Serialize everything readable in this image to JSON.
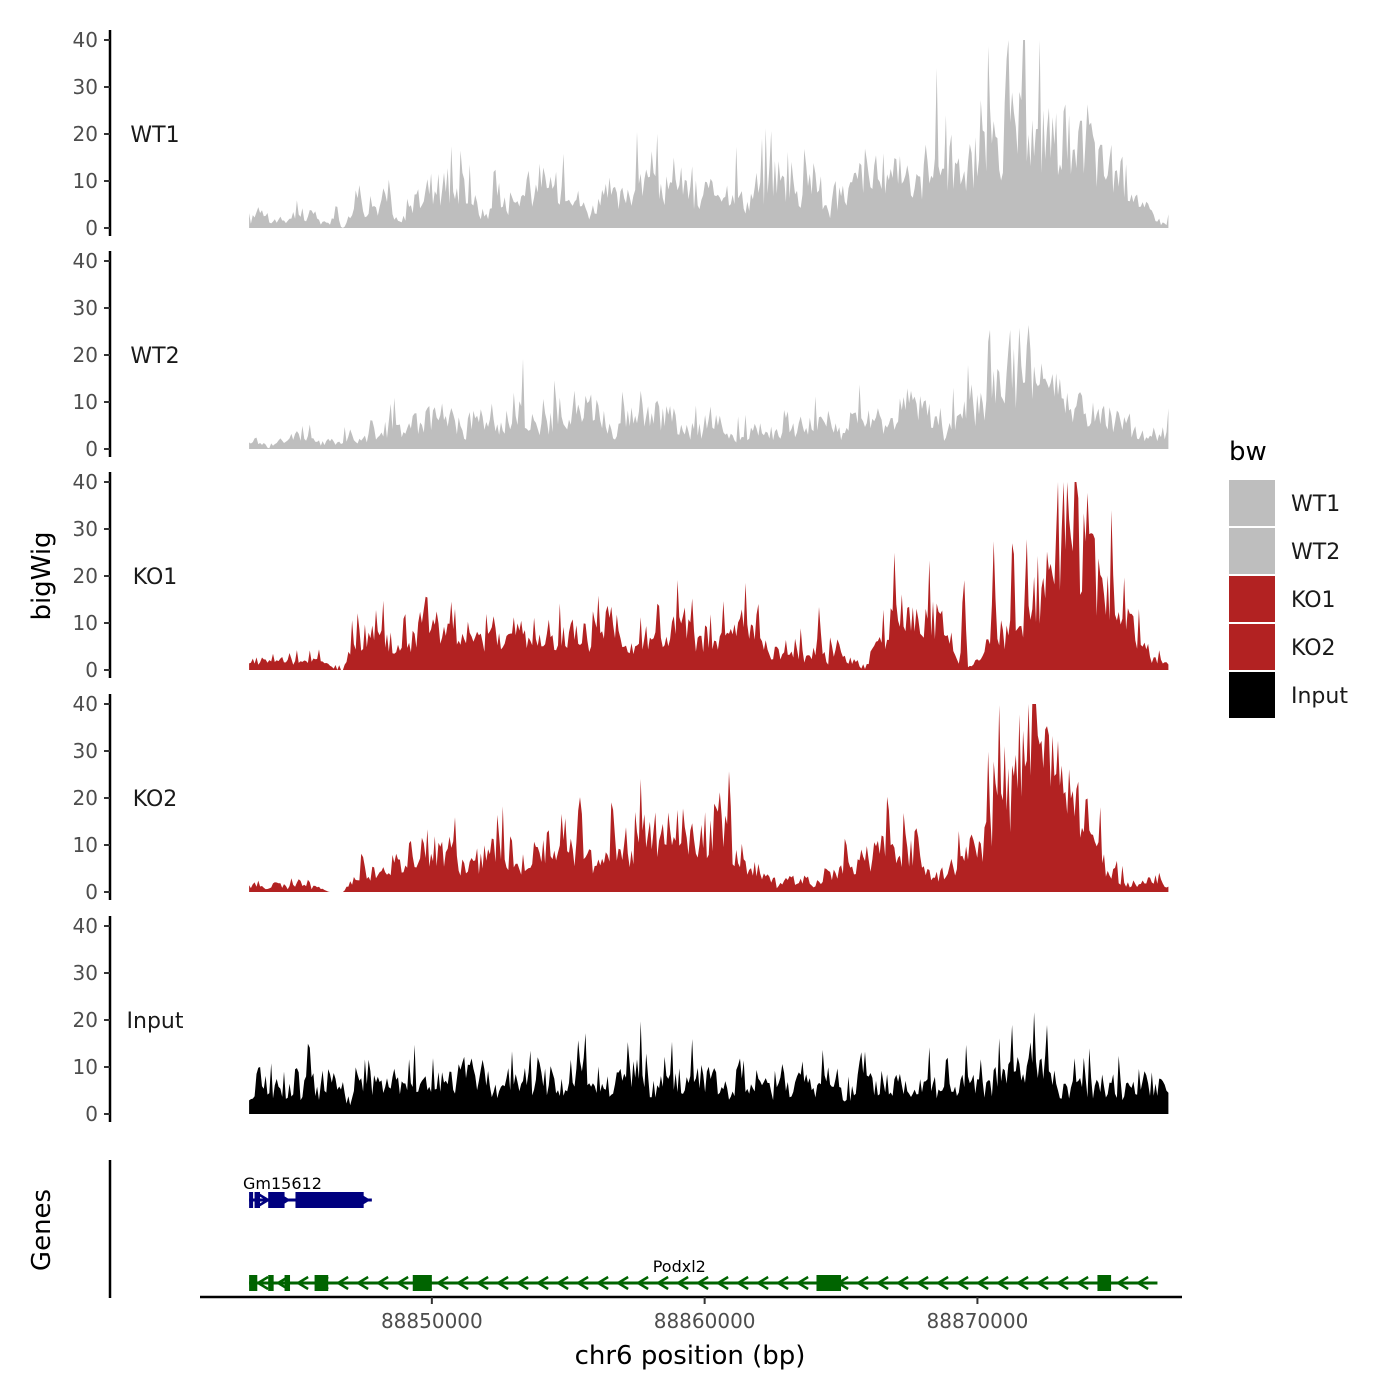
{
  "chart_data": {
    "type": "area",
    "title": "",
    "xlabel": "chr6 position (bp)",
    "ylabel": "bigWig",
    "genes_label": "Genes",
    "xlim": [
      88841500,
      88877500
    ],
    "x_ticks": [
      88850000,
      88860000,
      88870000
    ],
    "x_tick_labels": [
      "88850000",
      "88860000",
      "88870000"
    ],
    "ylim": [
      0,
      40
    ],
    "y_ticks": [
      0,
      10,
      20,
      30,
      40
    ],
    "y_tick_labels": [
      "0",
      "10",
      "20",
      "30",
      "40"
    ],
    "x_start": 88843300,
    "x_end": 88877000,
    "legend": {
      "title": "bw",
      "position": "right",
      "items": [
        {
          "label": "WT1",
          "color": "#bebebe"
        },
        {
          "label": "WT2",
          "color": "#bebebe"
        },
        {
          "label": "KO1",
          "color": "#b22222"
        },
        {
          "label": "KO2",
          "color": "#b22222"
        },
        {
          "label": "Input",
          "color": "#000000"
        }
      ]
    },
    "series": [
      {
        "name": "WT1",
        "color": "#bebebe",
        "values": [
          1,
          3,
          4,
          1,
          2,
          1,
          3,
          2,
          2,
          3,
          1,
          1,
          1,
          0,
          2,
          7,
          4,
          5,
          4,
          6,
          2,
          1,
          4,
          5,
          7,
          9,
          8,
          9,
          8,
          7,
          9,
          6,
          3,
          3,
          4,
          5,
          5,
          6,
          7,
          8,
          6,
          8,
          8,
          9,
          10,
          7,
          5,
          3,
          5,
          6,
          8,
          5,
          8,
          8,
          9,
          10,
          8,
          9,
          7,
          8,
          10,
          6,
          4,
          8,
          7,
          9,
          8,
          9,
          6,
          5,
          9,
          8,
          11,
          12,
          9,
          8,
          6,
          11,
          10,
          7,
          3,
          5,
          7,
          8,
          10,
          13,
          9,
          7,
          8,
          11,
          14,
          9,
          6,
          11,
          16,
          15,
          13,
          14,
          11,
          9,
          13,
          16,
          17,
          16,
          18,
          20,
          22,
          19,
          20,
          17,
          23,
          16,
          21,
          19,
          12,
          17,
          21,
          14,
          13,
          11,
          12,
          10,
          9,
          4,
          4,
          3,
          1,
          1
        ],
        "peaks": [
          {
            "x": 88846500,
            "y": 6
          },
          {
            "x": 88852300,
            "y": 16
          },
          {
            "x": 88858900,
            "y": 14
          },
          {
            "x": 88863200,
            "y": 16
          },
          {
            "x": 88866800,
            "y": 15
          },
          {
            "x": 88868600,
            "y": 16
          },
          {
            "x": 88869700,
            "y": 21
          },
          {
            "x": 88870400,
            "y": 22
          },
          {
            "x": 88871200,
            "y": 23
          },
          {
            "x": 88872600,
            "y": 22
          }
        ]
      },
      {
        "name": "WT2",
        "color": "#bebebe",
        "values": [
          1,
          2,
          1,
          0,
          2,
          1,
          3,
          3,
          2,
          2,
          1,
          2,
          1,
          2,
          3,
          2,
          2,
          3,
          4,
          4,
          5,
          4,
          5,
          5,
          6,
          7,
          6,
          8,
          7,
          5,
          3,
          5,
          6,
          6,
          4,
          5,
          7,
          7,
          8,
          6,
          5,
          5,
          6,
          9,
          6,
          7,
          8,
          9,
          8,
          6,
          4,
          3,
          6,
          7,
          8,
          9,
          7,
          6,
          8,
          5,
          4,
          3,
          4,
          3,
          4,
          4,
          3,
          2,
          3,
          3,
          4,
          4,
          4,
          2,
          4,
          4,
          5,
          4,
          6,
          5,
          5,
          4,
          3,
          5,
          6,
          8,
          5,
          6,
          4,
          6,
          8,
          10,
          9,
          8,
          7,
          5,
          3,
          5,
          7,
          9,
          8,
          9,
          10,
          12,
          13,
          17,
          15,
          25,
          16,
          15,
          13,
          12,
          14,
          11,
          10,
          8,
          7,
          7,
          7,
          6,
          6,
          5,
          4,
          3,
          2,
          2,
          3,
          4
        ],
        "peaks": [
          {
            "x": 88849400,
            "y": 10
          },
          {
            "x": 88854100,
            "y": 12
          },
          {
            "x": 88857000,
            "y": 14
          },
          {
            "x": 88869800,
            "y": 15
          },
          {
            "x": 88870600,
            "y": 17
          },
          {
            "x": 88871200,
            "y": 26
          },
          {
            "x": 88872600,
            "y": 15
          },
          {
            "x": 88873800,
            "y": 9
          }
        ]
      },
      {
        "name": "KO1",
        "color": "#b22222",
        "values": [
          1,
          2,
          2,
          3,
          2,
          2,
          1,
          2,
          2,
          2,
          3,
          1,
          0,
          0,
          4,
          6,
          7,
          8,
          6,
          7,
          5,
          4,
          5,
          8,
          10,
          12,
          9,
          8,
          7,
          6,
          8,
          6,
          6,
          8,
          7,
          8,
          6,
          7,
          8,
          5,
          5,
          6,
          7,
          8,
          6,
          5,
          4,
          5,
          8,
          10,
          11,
          9,
          6,
          5,
          6,
          8,
          7,
          6,
          7,
          9,
          10,
          7,
          6,
          7,
          5,
          6,
          7,
          8,
          10,
          9,
          6,
          5,
          4,
          4,
          3,
          3,
          4,
          2,
          3,
          4,
          2,
          6,
          3,
          2,
          1,
          0,
          3,
          6,
          8,
          10,
          13,
          11,
          10,
          12,
          11,
          10,
          7,
          4,
          2,
          1,
          1,
          3,
          5,
          6,
          5,
          6,
          6,
          9,
          11,
          17,
          20,
          23,
          28,
          31,
          33,
          27,
          24,
          20,
          18,
          15,
          13,
          10,
          9,
          6,
          4,
          2,
          2,
          1
        ],
        "peaks": [
          {
            "x": 88847300,
            "y": 12
          },
          {
            "x": 88849000,
            "y": 15
          },
          {
            "x": 88855600,
            "y": 13
          },
          {
            "x": 88861900,
            "y": 12
          },
          {
            "x": 88864200,
            "y": 14
          },
          {
            "x": 88869500,
            "y": 22
          },
          {
            "x": 88870600,
            "y": 28
          },
          {
            "x": 88871300,
            "y": 34
          },
          {
            "x": 88871800,
            "y": 30
          },
          {
            "x": 88872700,
            "y": 25
          }
        ]
      },
      {
        "name": "KO2",
        "color": "#b22222",
        "values": [
          1,
          2,
          1,
          1,
          2,
          1,
          1,
          2,
          1,
          1,
          1,
          0,
          0,
          0,
          2,
          3,
          4,
          4,
          5,
          5,
          6,
          5,
          6,
          8,
          10,
          9,
          8,
          9,
          8,
          6,
          5,
          6,
          7,
          8,
          9,
          8,
          6,
          5,
          6,
          7,
          8,
          9,
          11,
          12,
          10,
          9,
          8,
          7,
          6,
          7,
          8,
          9,
          8,
          10,
          12,
          13,
          11,
          10,
          12,
          11,
          13,
          10,
          11,
          12,
          14,
          15,
          13,
          9,
          7,
          6,
          5,
          4,
          3,
          1,
          2,
          3,
          2,
          3,
          1,
          3,
          4,
          4,
          5,
          5,
          6,
          7,
          7,
          8,
          9,
          7,
          8,
          9,
          10,
          8,
          4,
          3,
          4,
          5,
          6,
          7,
          9,
          10,
          12,
          15,
          18,
          22,
          28,
          35,
          36,
          30,
          27,
          25,
          22,
          20,
          22,
          19,
          16,
          10,
          6,
          4,
          3,
          2,
          1,
          2,
          2,
          3,
          2,
          1
        ],
        "peaks": [
          {
            "x": 88849200,
            "y": 14
          },
          {
            "x": 88852900,
            "y": 15
          },
          {
            "x": 88857500,
            "y": 15
          },
          {
            "x": 88859000,
            "y": 18
          },
          {
            "x": 88870400,
            "y": 31
          },
          {
            "x": 88870800,
            "y": 40
          },
          {
            "x": 88871300,
            "y": 34
          },
          {
            "x": 88872500,
            "y": 32
          }
        ]
      },
      {
        "name": "Input",
        "color": "#000000",
        "values": [
          2,
          7,
          8,
          5,
          6,
          4,
          5,
          4,
          7,
          6,
          5,
          8,
          6,
          4,
          3,
          6,
          9,
          7,
          5,
          6,
          7,
          5,
          6,
          7,
          5,
          4,
          6,
          7,
          8,
          7,
          9,
          8,
          9,
          7,
          6,
          5,
          6,
          7,
          8,
          6,
          9,
          7,
          8,
          6,
          5,
          7,
          9,
          7,
          6,
          5,
          6,
          8,
          7,
          8,
          9,
          6,
          5,
          7,
          6,
          8,
          6,
          7,
          9,
          8,
          7,
          6,
          5,
          4,
          6,
          5,
          7,
          6,
          5,
          6,
          7,
          6,
          7,
          6,
          5,
          6,
          7,
          6,
          5,
          4,
          6,
          7,
          6,
          5,
          4,
          6,
          7,
          5,
          6,
          7,
          8,
          6,
          5,
          6,
          5,
          7,
          6,
          5,
          6,
          7,
          8,
          9,
          8,
          7,
          12,
          10,
          8,
          7,
          6,
          5,
          6,
          7,
          6,
          5,
          6,
          7,
          6,
          5,
          6,
          7,
          6,
          5,
          6,
          4
        ],
        "peaks": [
          {
            "x": 88845500,
            "y": 11
          },
          {
            "x": 88851000,
            "y": 12
          },
          {
            "x": 88855100,
            "y": 12
          },
          {
            "x": 88861200,
            "y": 13
          },
          {
            "x": 88871500,
            "y": 15
          }
        ]
      }
    ],
    "genes": [
      {
        "name": "Gm15612",
        "color": "#00007f",
        "start": 88843300,
        "end": 88847800,
        "strand": "+",
        "row": 1,
        "exons": [
          [
            88843300,
            88843400
          ],
          [
            88843500,
            88843700
          ],
          [
            88844000,
            88844600
          ],
          [
            88845000,
            88847500
          ]
        ]
      },
      {
        "name": "Podxl2",
        "color": "#006400",
        "start": 88843300,
        "end": 88876600,
        "strand": "-",
        "row": 2,
        "exons": [
          [
            88843300,
            88843600
          ],
          [
            88844000,
            88844200
          ],
          [
            88844600,
            88844800
          ],
          [
            88845700,
            88846200
          ],
          [
            88849300,
            88850000
          ],
          [
            88864100,
            88865000
          ],
          [
            88874400,
            88874900
          ]
        ]
      }
    ]
  }
}
